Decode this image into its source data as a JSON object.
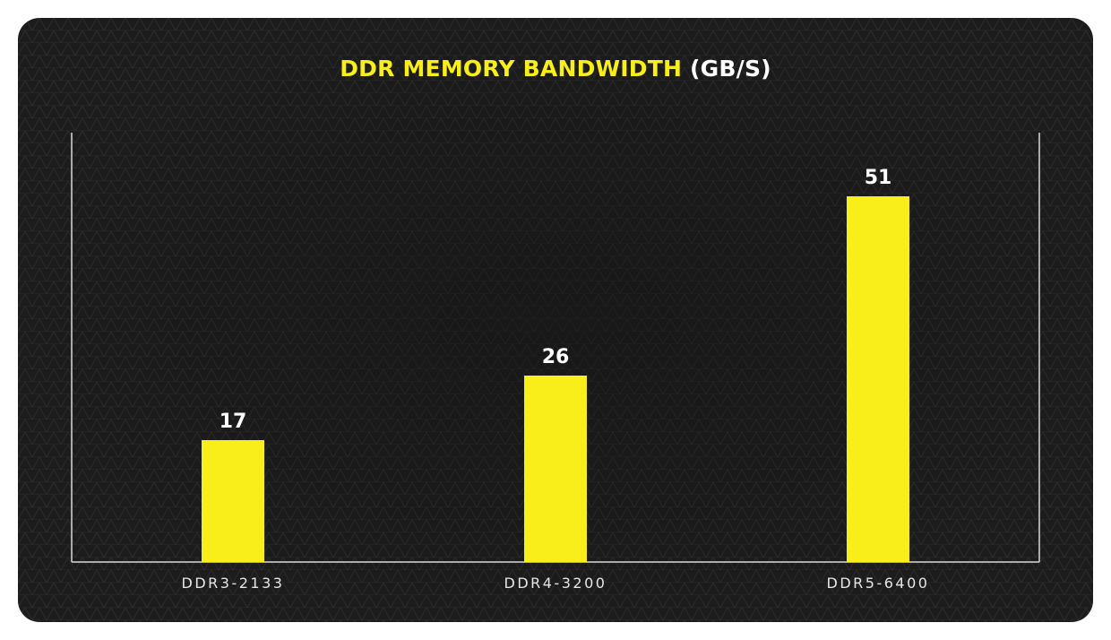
{
  "colors": {
    "bar": "#f7ee1a",
    "title_accent": "#f7ee1a",
    "title_unit": "#ffffff",
    "axis": "#d9d9d9",
    "background": "#1c1c1c"
  },
  "chart_data": {
    "type": "bar",
    "title": "DDR MEMORY BANDWIDTH",
    "title_unit": "(GB/S)",
    "categories": [
      "DDR3-2133",
      "DDR4-3200",
      "DDR5-6400"
    ],
    "values": [
      17,
      26,
      51
    ],
    "value_labels": [
      "17",
      "26",
      "51"
    ],
    "ylim": [
      0,
      60
    ],
    "grid": false,
    "legend": "none",
    "xlabel": "",
    "ylabel": ""
  }
}
